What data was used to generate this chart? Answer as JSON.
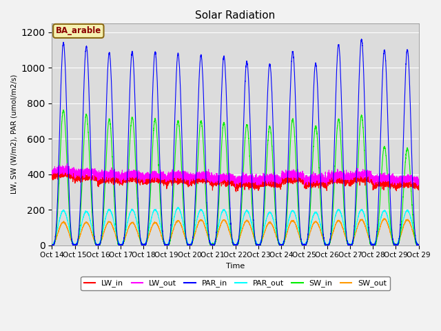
{
  "title": "Solar Radiation",
  "ylabel": "LW, SW (W/m2), PAR (umol/m2/s)",
  "xlabel": "Time",
  "ylim": [
    0,
    1250
  ],
  "yticks": [
    0,
    200,
    400,
    600,
    800,
    1000,
    1200
  ],
  "background_color": "#dcdcdc",
  "fig_bg": "#f2f2f2",
  "label_text": "BA_arable",
  "label_bg": "#f5f0b0",
  "label_border": "#8b6914",
  "label_text_color": "#8b0000",
  "series": {
    "LW_in": {
      "color": "#ff0000",
      "lw": 0.8
    },
    "LW_out": {
      "color": "#ff00ff",
      "lw": 0.8
    },
    "PAR_in": {
      "color": "#0000ff",
      "lw": 0.8
    },
    "PAR_out": {
      "color": "#00ffff",
      "lw": 0.8
    },
    "SW_in": {
      "color": "#00ee00",
      "lw": 0.8
    },
    "SW_out": {
      "color": "#ff9900",
      "lw": 0.8
    }
  },
  "n_days": 16,
  "start_day": 14,
  "ppd": 288,
  "par_peaks": [
    1140,
    1120,
    1085,
    1090,
    1090,
    1080,
    1070,
    1065,
    1035,
    1020,
    1090,
    1025,
    1130,
    1160,
    1100,
    1100
  ],
  "sw_peaks": [
    760,
    735,
    710,
    720,
    710,
    700,
    700,
    690,
    680,
    670,
    710,
    670,
    710,
    730,
    555,
    545
  ],
  "par_out_peaks": [
    195,
    190,
    200,
    200,
    200,
    210,
    200,
    200,
    195,
    185,
    195,
    185,
    200,
    200,
    195,
    195
  ],
  "sw_out_peaks": [
    130,
    128,
    133,
    128,
    128,
    138,
    143,
    143,
    138,
    128,
    138,
    133,
    138,
    143,
    148,
    143
  ],
  "lw_in_day_vals": [
    370,
    355,
    340,
    345,
    340,
    340,
    340,
    330,
    315,
    320,
    345,
    320,
    340,
    345,
    320,
    315
  ],
  "lw_out_day_vals": [
    400,
    385,
    375,
    375,
    370,
    370,
    370,
    360,
    350,
    355,
    375,
    355,
    370,
    375,
    355,
    350
  ]
}
